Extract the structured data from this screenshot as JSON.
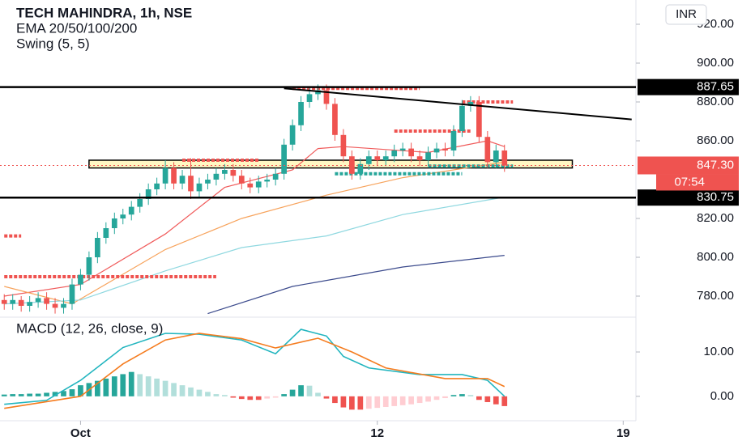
{
  "chart_data": [
    {
      "type": "candlestick",
      "title": "TECH MAHINDRA, 1h, NSE",
      "indicators": [
        "EMA 20/50/100/200",
        "Swing (5, 5)"
      ],
      "currency": "INR",
      "categories": [
        null,
        null,
        null,
        null,
        null,
        null,
        null,
        null,
        null,
        "Oct",
        null,
        null,
        null,
        null,
        null,
        null,
        null,
        null,
        null,
        null,
        null,
        null,
        null,
        null,
        null,
        null,
        null,
        null,
        null,
        null,
        null,
        null,
        null,
        null,
        null,
        null,
        null,
        null,
        null,
        null,
        null,
        null,
        null,
        null,
        "12",
        null,
        null,
        null,
        null,
        null,
        null,
        null,
        null,
        null,
        null,
        null,
        null,
        null,
        null,
        null,
        null,
        null,
        null,
        null,
        null,
        null,
        null,
        null,
        null,
        null,
        null,
        null,
        null,
        "19",
        null
      ],
      "open": [
        778,
        776,
        778,
        775,
        777,
        779,
        776,
        774,
        776,
        786,
        791,
        800,
        810,
        815,
        820,
        822,
        826,
        830,
        835,
        838,
        846,
        838,
        842,
        834,
        838,
        840,
        843,
        845,
        842,
        838,
        836,
        839,
        840,
        843,
        858,
        868,
        880,
        884,
        886,
        879,
        863,
        852,
        843,
        848,
        852,
        850,
        852,
        855,
        856,
        852,
        850,
        854,
        856,
        855,
        865,
        878,
        880,
        862,
        849,
        855,
        null,
        null,
        null,
        null,
        null,
        null,
        null,
        null,
        null,
        null,
        null,
        null,
        null,
        null,
        null
      ],
      "high": [
        781,
        781,
        780,
        780,
        782,
        782,
        779,
        779,
        789,
        794,
        803,
        813,
        818,
        823,
        825,
        829,
        833,
        838,
        841,
        850,
        849,
        845,
        851,
        841,
        843,
        846,
        848,
        848,
        845,
        841,
        842,
        843,
        846,
        861,
        871,
        883,
        887,
        889,
        889,
        882,
        866,
        855,
        851,
        855,
        855,
        855,
        858,
        859,
        859,
        855,
        857,
        859,
        859,
        868,
        881,
        883,
        883,
        865,
        858,
        858,
        null,
        null,
        null,
        null,
        null,
        null,
        null,
        null,
        null,
        null,
        null,
        null,
        null,
        null,
        null
      ],
      "low": [
        773,
        773,
        772,
        772,
        774,
        773,
        771,
        771,
        773,
        783,
        788,
        797,
        807,
        812,
        817,
        819,
        823,
        827,
        832,
        835,
        835,
        835,
        830,
        831,
        835,
        837,
        840,
        839,
        835,
        833,
        833,
        836,
        837,
        840,
        855,
        865,
        877,
        881,
        876,
        860,
        849,
        840,
        840,
        845,
        847,
        847,
        849,
        852,
        849,
        847,
        847,
        851,
        852,
        852,
        862,
        875,
        859,
        846,
        846,
        844,
        null,
        null,
        null,
        null,
        null,
        null,
        null,
        null,
        null,
        null,
        null,
        null,
        null,
        null,
        null
      ],
      "close": [
        776,
        778,
        775,
        777,
        779,
        776,
        774,
        776,
        786,
        791,
        800,
        810,
        815,
        820,
        822,
        826,
        830,
        835,
        838,
        846,
        838,
        842,
        834,
        838,
        840,
        843,
        845,
        842,
        838,
        836,
        839,
        840,
        843,
        858,
        868,
        880,
        884,
        886,
        879,
        863,
        852,
        843,
        848,
        852,
        850,
        852,
        855,
        856,
        852,
        850,
        854,
        856,
        855,
        865,
        878,
        880,
        862,
        849,
        855,
        847.3,
        null,
        null,
        null,
        null,
        null,
        null,
        null,
        null,
        null,
        null,
        null,
        null,
        null,
        null,
        null
      ],
      "up_color": "#26a69a",
      "down_color": "#ef5350",
      "series": [
        {
          "color": "#f05a5a",
          "x": [
            0,
            9,
            19,
            26,
            34,
            37,
            40,
            50,
            57,
            59
          ],
          "values": [
            780,
            786,
            812,
            836,
            845,
            856,
            857,
            854,
            860,
            857
          ]
        },
        {
          "color": "#f7a35c",
          "x": [
            0,
            8,
            19,
            28,
            38,
            47,
            59
          ],
          "values": [
            785,
            776,
            804,
            820,
            832,
            841,
            849
          ]
        },
        {
          "color": "#8fd8e0",
          "x": [
            0,
            9,
            19,
            28,
            38,
            47,
            59
          ],
          "values": [
            776,
            778,
            793,
            805,
            811,
            822,
            831
          ]
        },
        {
          "color": "#3b4a8c",
          "x": [
            24,
            34,
            47,
            59
          ],
          "values": [
            771,
            785,
            795,
            801
          ]
        }
      ],
      "ylim": [
        770,
        932.5
      ],
      "yticks": [
        {
          "value": 920,
          "label": "920.00"
        },
        {
          "value": 900,
          "label": "900.00"
        },
        {
          "value": 880,
          "label": "880.00"
        },
        {
          "value": 860,
          "label": "860.00"
        },
        {
          "value": 820,
          "label": "820.00"
        },
        {
          "value": 800,
          "label": "800.00"
        },
        {
          "value": 780,
          "label": "780.00"
        }
      ],
      "levels": [
        {
          "value": 887.65,
          "label": "887.65"
        },
        {
          "value": 830.75,
          "label": "830.75"
        }
      ],
      "last_price": {
        "value": 847.3,
        "label": "847.30",
        "countdown": "07:54"
      },
      "zone": {
        "x": [
          10,
          67
        ],
        "values": [
          846,
          850
        ]
      },
      "trendline": {
        "x": [
          33,
          74
        ],
        "values": [
          887,
          871
        ]
      },
      "swing_levels": [
        {
          "value": 887,
          "x": [
            34,
            49
          ],
          "color": "#ef5350"
        },
        {
          "value": 865,
          "x": [
            46,
            55
          ],
          "color": "#ef5350"
        },
        {
          "value": 880,
          "x": [
            54,
            60
          ],
          "color": "#ef5350"
        },
        {
          "value": 850,
          "x": [
            21,
            30
          ],
          "color": "#ef5350"
        },
        {
          "value": 811,
          "x": [
            0,
            2
          ],
          "color": "#ef5350"
        },
        {
          "value": 790,
          "x": [
            0,
            25
          ],
          "color": "#ef5350"
        },
        {
          "value": 843,
          "x": [
            39,
            54
          ],
          "color": "#26a69a"
        },
        {
          "value": 847,
          "x": [
            50,
            60
          ],
          "color": "#26a69a"
        }
      ]
    },
    {
      "type": "macd",
      "title": "MACD (12, 26, close, 9)",
      "series": [
        {
          "color": "#22b5bf",
          "x": [
            0,
            5,
            9,
            14,
            19,
            23,
            28,
            32,
            35,
            38,
            40,
            43,
            49,
            54,
            57,
            59
          ],
          "values": [
            -1.8,
            -0.9,
            3.6,
            11,
            14.2,
            14,
            12.7,
            9.6,
            15.1,
            13.6,
            9,
            6.4,
            4.9,
            4.9,
            3.6,
            0
          ]
        },
        {
          "color": "#f57c1f",
          "x": [
            0,
            9,
            14,
            19,
            23,
            28,
            32,
            37,
            41,
            45,
            52,
            57,
            59
          ],
          "values": [
            -2.7,
            0,
            7.3,
            12.7,
            14.2,
            13,
            10.9,
            13.1,
            10,
            6.4,
            4,
            4,
            2.2
          ]
        }
      ],
      "histogram": [
        0.4,
        0.5,
        0.5,
        0.6,
        0.6,
        0.8,
        1,
        1.2,
        1.6,
        2.5,
        3,
        3.5,
        4,
        4.5,
        5,
        5.5,
        5,
        4.5,
        4,
        3.5,
        3,
        2.5,
        2,
        1.5,
        1,
        0.5,
        0.3,
        -0.3,
        -0.6,
        -0.8,
        -0.8,
        -0.5,
        -0.3,
        0.5,
        1.5,
        2.5,
        2.4,
        0.8,
        -0.5,
        -1.5,
        -2.5,
        -3,
        -3,
        -2.8,
        -2.6,
        -2.4,
        -2.2,
        -2,
        -1.8,
        -1.5,
        -1.2,
        -0.8,
        -0.4,
        0.3,
        0.5,
        0.3,
        -0.8,
        -1.3,
        -1.8,
        -2.2,
        null,
        null,
        null,
        null,
        null,
        null,
        null,
        null,
        null,
        null,
        null,
        null,
        null,
        null,
        null
      ],
      "histogram_colors": [
        "#26a69a",
        "#b2dfdb",
        "#ef5350",
        "#ffcdd2"
      ],
      "ylim": [
        -5.5,
        17.3
      ],
      "yticks": [
        {
          "value": 10,
          "label": "10.00"
        },
        {
          "value": 0,
          "label": "0.00"
        }
      ]
    }
  ]
}
